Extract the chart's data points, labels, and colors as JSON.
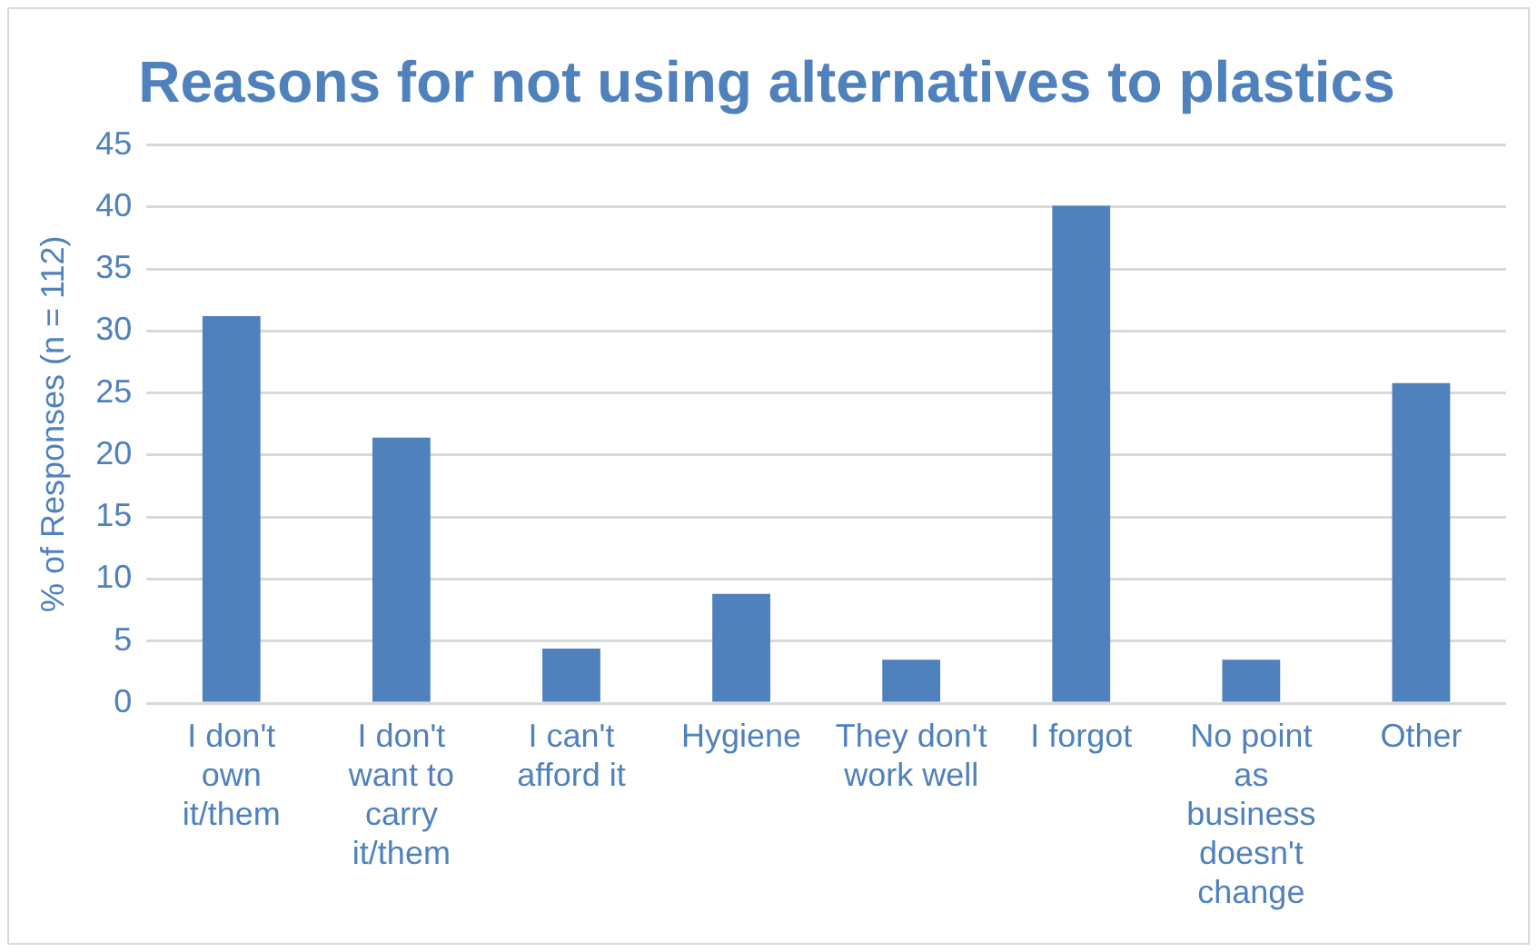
{
  "chart_data": {
    "type": "bar",
    "title": "Reasons for not using alternatives to plastics",
    "ylabel": "% of Responses (n = 112)",
    "categories": [
      "I don't own it/them",
      "I don't want to carry it/them",
      "I can't afford it",
      "Hygiene",
      "They don't work well",
      "I forgot",
      "No point as business doesn't change",
      "Other"
    ],
    "values": [
      31.2,
      21.4,
      4.4,
      8.8,
      3.5,
      40.1,
      3.5,
      25.8
    ],
    "color": "#4f81bd",
    "ylim": [
      0,
      45
    ],
    "yticks": [
      0,
      5,
      10,
      15,
      20,
      25,
      30,
      35,
      40,
      45
    ],
    "grid": "y",
    "legend": false
  }
}
